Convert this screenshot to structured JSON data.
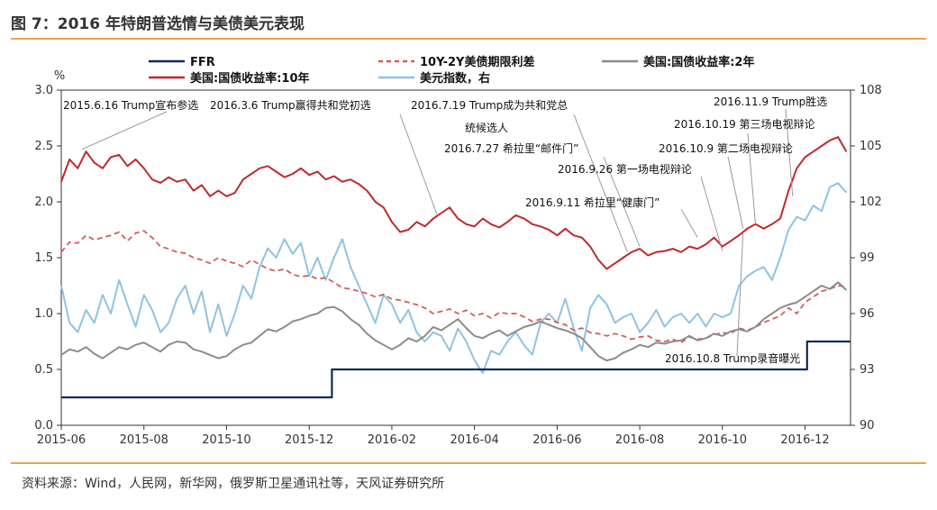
{
  "title": "图 7：2016 年特朗普选情与美债美元表现",
  "source": "资料来源：Wind，人民网，新华网，俄罗斯卫星通讯社等，天风证券研究所",
  "chart_data": {
    "type": "line",
    "title": "图 7：2016 年特朗普选情与美债美元表现",
    "ylabel": "%",
    "ylim": [
      0,
      3.0
    ],
    "y2lim": [
      90,
      108
    ],
    "yticks": [
      "0.0",
      "0.5",
      "1.0",
      "1.5",
      "2.0",
      "2.5",
      "3.0"
    ],
    "y2ticks": [
      "90",
      "93",
      "96",
      "99",
      "102",
      "105",
      "108"
    ],
    "xticks": [
      "2015-06",
      "2015-08",
      "2015-10",
      "2015-12",
      "2016-02",
      "2016-04",
      "2016-06",
      "2016-08",
      "2016-10",
      "2016-12"
    ],
    "x_range_months": [
      0,
      19.1
    ],
    "legend": [
      "FFR",
      "10Y-2Y美债期限利差",
      "美国:国债收益率:2年",
      "美国:国债收益率:10年",
      "美元指数，右"
    ],
    "colors": {
      "ffr": "#0D2B5C",
      "spread": "#D65B5B",
      "y2": "#8C8C8C",
      "y10": "#C0282D",
      "dxy": "#8EC3E3"
    },
    "series": [
      {
        "name": "FFR",
        "axis": "left",
        "x": [
          0,
          6.55,
          6.55,
          18.05,
          18.05,
          19.1
        ],
        "values": [
          0.25,
          0.25,
          0.5,
          0.5,
          0.75,
          0.75
        ]
      },
      {
        "name": "10Y-2Y美债期限利差",
        "axis": "left",
        "x": [
          0,
          0.2,
          0.4,
          0.6,
          0.8,
          1.0,
          1.2,
          1.4,
          1.6,
          1.8,
          2.0,
          2.2,
          2.4,
          2.6,
          2.8,
          3.0,
          3.2,
          3.4,
          3.6,
          3.8,
          4.0,
          4.2,
          4.4,
          4.6,
          4.8,
          5.0,
          5.2,
          5.4,
          5.6,
          5.8,
          6.0,
          6.2,
          6.4,
          6.6,
          6.8,
          7.0,
          7.2,
          7.4,
          7.6,
          7.8,
          8.0,
          8.2,
          8.4,
          8.6,
          8.8,
          9.0,
          9.2,
          9.4,
          9.6,
          9.8,
          10.0,
          10.2,
          10.4,
          10.6,
          10.8,
          11.0,
          11.2,
          11.4,
          11.6,
          11.8,
          12.0,
          12.2,
          12.4,
          12.6,
          12.8,
          13.0,
          13.2,
          13.4,
          13.6,
          13.8,
          14.0,
          14.2,
          14.4,
          14.6,
          14.8,
          15.0,
          15.2,
          15.4,
          15.6,
          15.8,
          16.0,
          16.2,
          16.4,
          16.6,
          16.8,
          17.0,
          17.2,
          17.4,
          17.6,
          17.8,
          18.0,
          18.2,
          18.4,
          18.6,
          18.8,
          19.0
        ],
        "values": [
          1.55,
          1.64,
          1.63,
          1.7,
          1.66,
          1.68,
          1.7,
          1.73,
          1.65,
          1.72,
          1.74,
          1.68,
          1.6,
          1.58,
          1.55,
          1.54,
          1.5,
          1.48,
          1.45,
          1.5,
          1.47,
          1.45,
          1.42,
          1.48,
          1.44,
          1.4,
          1.38,
          1.4,
          1.35,
          1.33,
          1.34,
          1.31,
          1.32,
          1.28,
          1.23,
          1.22,
          1.2,
          1.18,
          1.15,
          1.17,
          1.13,
          1.12,
          1.1,
          1.08,
          1.05,
          1.0,
          1.02,
          1.04,
          1.0,
          1.03,
          0.98,
          1.0,
          0.96,
          1.01,
          1.0,
          1.0,
          0.97,
          0.93,
          0.95,
          0.95,
          0.92,
          0.9,
          0.85,
          0.87,
          0.83,
          0.82,
          0.8,
          0.82,
          0.8,
          0.77,
          0.79,
          0.8,
          0.76,
          0.75,
          0.77,
          0.74,
          0.79,
          0.77,
          0.78,
          0.81,
          0.83,
          0.82,
          0.87,
          0.85,
          0.88,
          0.92,
          0.95,
          0.98,
          1.05,
          1.0,
          1.1,
          1.15,
          1.2,
          1.22,
          1.25,
          1.24
        ]
      },
      {
        "name": "美国:国债收益率:2年",
        "axis": "left",
        "x": [
          0,
          0.2,
          0.4,
          0.6,
          0.8,
          1.0,
          1.2,
          1.4,
          1.6,
          1.8,
          2.0,
          2.2,
          2.4,
          2.6,
          2.8,
          3.0,
          3.2,
          3.4,
          3.6,
          3.8,
          4.0,
          4.2,
          4.4,
          4.6,
          4.8,
          5.0,
          5.2,
          5.4,
          5.6,
          5.8,
          6.0,
          6.2,
          6.4,
          6.6,
          6.8,
          7.0,
          7.2,
          7.4,
          7.6,
          7.8,
          8.0,
          8.2,
          8.4,
          8.6,
          8.8,
          9.0,
          9.2,
          9.4,
          9.6,
          9.8,
          10.0,
          10.2,
          10.4,
          10.6,
          10.8,
          11.0,
          11.2,
          11.4,
          11.6,
          11.8,
          12.0,
          12.2,
          12.4,
          12.6,
          12.8,
          13.0,
          13.2,
          13.4,
          13.6,
          13.8,
          14.0,
          14.2,
          14.4,
          14.6,
          14.8,
          15.0,
          15.2,
          15.4,
          15.6,
          15.8,
          16.0,
          16.2,
          16.4,
          16.6,
          16.8,
          17.0,
          17.2,
          17.4,
          17.6,
          17.8,
          18.0,
          18.2,
          18.4,
          18.6,
          18.8,
          19.0
        ],
        "values": [
          0.63,
          0.68,
          0.66,
          0.7,
          0.64,
          0.6,
          0.65,
          0.7,
          0.68,
          0.72,
          0.74,
          0.7,
          0.66,
          0.72,
          0.75,
          0.74,
          0.68,
          0.66,
          0.63,
          0.6,
          0.62,
          0.68,
          0.72,
          0.74,
          0.8,
          0.86,
          0.84,
          0.88,
          0.93,
          0.95,
          0.98,
          1.0,
          1.05,
          1.06,
          1.02,
          0.95,
          0.9,
          0.82,
          0.76,
          0.72,
          0.68,
          0.72,
          0.78,
          0.75,
          0.8,
          0.88,
          0.85,
          0.9,
          0.95,
          0.87,
          0.8,
          0.78,
          0.82,
          0.85,
          0.8,
          0.84,
          0.88,
          0.9,
          0.93,
          0.9,
          0.87,
          0.85,
          0.82,
          0.78,
          0.7,
          0.62,
          0.58,
          0.6,
          0.65,
          0.68,
          0.72,
          0.7,
          0.74,
          0.73,
          0.75,
          0.76,
          0.8,
          0.76,
          0.78,
          0.82,
          0.8,
          0.84,
          0.86,
          0.84,
          0.88,
          0.95,
          1.0,
          1.05,
          1.08,
          1.1,
          1.15,
          1.2,
          1.25,
          1.22,
          1.28,
          1.21
        ]
      },
      {
        "name": "美国:国债收益率:10年",
        "axis": "left",
        "x": [
          0,
          0.2,
          0.4,
          0.6,
          0.8,
          1.0,
          1.2,
          1.4,
          1.6,
          1.8,
          2.0,
          2.2,
          2.4,
          2.6,
          2.8,
          3.0,
          3.2,
          3.4,
          3.6,
          3.8,
          4.0,
          4.2,
          4.4,
          4.6,
          4.8,
          5.0,
          5.2,
          5.4,
          5.6,
          5.8,
          6.0,
          6.2,
          6.4,
          6.6,
          6.8,
          7.0,
          7.2,
          7.4,
          7.6,
          7.8,
          8.0,
          8.2,
          8.4,
          8.6,
          8.8,
          9.0,
          9.2,
          9.4,
          9.6,
          9.8,
          10.0,
          10.2,
          10.4,
          10.6,
          10.8,
          11.0,
          11.2,
          11.4,
          11.6,
          11.8,
          12.0,
          12.2,
          12.4,
          12.6,
          12.8,
          13.0,
          13.2,
          13.4,
          13.6,
          13.8,
          14.0,
          14.2,
          14.4,
          14.6,
          14.8,
          15.0,
          15.2,
          15.4,
          15.6,
          15.8,
          16.0,
          16.2,
          16.4,
          16.6,
          16.8,
          17.0,
          17.2,
          17.4,
          17.6,
          17.8,
          18.0,
          18.2,
          18.4,
          18.6,
          18.8,
          19.0
        ],
        "values": [
          2.18,
          2.38,
          2.3,
          2.45,
          2.35,
          2.3,
          2.4,
          2.42,
          2.32,
          2.38,
          2.3,
          2.2,
          2.17,
          2.22,
          2.18,
          2.2,
          2.1,
          2.15,
          2.05,
          2.1,
          2.05,
          2.08,
          2.2,
          2.25,
          2.3,
          2.32,
          2.27,
          2.22,
          2.25,
          2.3,
          2.24,
          2.27,
          2.2,
          2.23,
          2.18,
          2.2,
          2.16,
          2.1,
          2.0,
          1.95,
          1.82,
          1.73,
          1.75,
          1.82,
          1.78,
          1.85,
          1.9,
          1.95,
          1.85,
          1.8,
          1.78,
          1.85,
          1.8,
          1.77,
          1.82,
          1.88,
          1.85,
          1.8,
          1.78,
          1.75,
          1.7,
          1.76,
          1.7,
          1.68,
          1.6,
          1.48,
          1.4,
          1.45,
          1.5,
          1.55,
          1.58,
          1.52,
          1.55,
          1.56,
          1.58,
          1.55,
          1.6,
          1.58,
          1.62,
          1.68,
          1.6,
          1.65,
          1.7,
          1.76,
          1.8,
          1.76,
          1.8,
          1.85,
          2.1,
          2.3,
          2.4,
          2.45,
          2.5,
          2.55,
          2.58,
          2.45
        ]
      },
      {
        "name": "美元指数，右",
        "axis": "right",
        "x": [
          0,
          0.2,
          0.4,
          0.6,
          0.8,
          1.0,
          1.2,
          1.4,
          1.6,
          1.8,
          2.0,
          2.2,
          2.4,
          2.6,
          2.8,
          3.0,
          3.2,
          3.4,
          3.6,
          3.8,
          4.0,
          4.2,
          4.4,
          4.6,
          4.8,
          5.0,
          5.2,
          5.4,
          5.6,
          5.8,
          6.0,
          6.2,
          6.4,
          6.6,
          6.8,
          7.0,
          7.2,
          7.4,
          7.6,
          7.8,
          8.0,
          8.2,
          8.4,
          8.6,
          8.8,
          9.0,
          9.2,
          9.4,
          9.6,
          9.8,
          10.0,
          10.2,
          10.4,
          10.6,
          10.8,
          11.0,
          11.2,
          11.4,
          11.6,
          11.8,
          12.0,
          12.2,
          12.4,
          12.6,
          12.8,
          13.0,
          13.2,
          13.4,
          13.6,
          13.8,
          14.0,
          14.2,
          14.4,
          14.6,
          14.8,
          15.0,
          15.2,
          15.4,
          15.6,
          15.8,
          16.0,
          16.2,
          16.4,
          16.6,
          16.8,
          17.0,
          17.2,
          17.4,
          17.6,
          17.8,
          18.0,
          18.2,
          18.4,
          18.6,
          18.8,
          19.0
        ],
        "values": [
          97.5,
          95.5,
          95.0,
          96.2,
          95.5,
          97.0,
          96.0,
          97.8,
          96.5,
          95.3,
          97.0,
          96.2,
          95.0,
          95.5,
          96.8,
          97.5,
          96.0,
          97.2,
          95.0,
          96.5,
          94.8,
          96.0,
          97.5,
          96.8,
          98.5,
          99.5,
          99.0,
          100.0,
          99.2,
          99.8,
          98.0,
          99.0,
          97.8,
          99.0,
          100.0,
          98.5,
          97.5,
          96.5,
          95.5,
          97.0,
          96.5,
          95.5,
          96.2,
          95.0,
          94.5,
          95.0,
          94.8,
          94.0,
          95.2,
          94.5,
          93.5,
          92.8,
          94.0,
          93.8,
          94.5,
          95.0,
          94.3,
          93.8,
          95.5,
          96.0,
          95.5,
          96.8,
          95.2,
          94.0,
          96.3,
          97.0,
          96.5,
          95.5,
          95.8,
          96.0,
          95.0,
          95.5,
          96.2,
          95.3,
          95.8,
          96.0,
          95.5,
          96.0,
          95.3,
          96.0,
          95.8,
          96.0,
          97.5,
          98.0,
          98.3,
          98.5,
          97.8,
          99.0,
          100.5,
          101.2,
          101.0,
          101.8,
          101.5,
          102.8,
          103.0,
          102.5
        ]
      }
    ],
    "annotations": [
      {
        "text": "2015.6.16 Trump宣布参选",
        "x": 0.5,
        "y": 2.47
      },
      {
        "text": "2016.3.6 Trump赢得共和党初选",
        "x": 9.1,
        "y": 1.88
      },
      {
        "text": "2016.7.19 Trump成为共和党总",
        "x": 13.7,
        "y": 1.55
      },
      {
        "text": "统候选人"
      },
      {
        "text": "2016.7.27 希拉里“邮件门”",
        "x": 14.0,
        "y": 1.6
      },
      {
        "text": "2016.9.26 第一场电视辩论",
        "x": 16.0,
        "y": 1.56
      },
      {
        "text": "2016.9.11 希拉里“健康门”",
        "x": 15.4,
        "y": 1.68
      },
      {
        "text": "2016.10.9 第二场电视辩论",
        "x": 16.5,
        "y": 1.76
      },
      {
        "text": "2016.10.19 第三场电视辩论",
        "x": 16.8,
        "y": 1.8
      },
      {
        "text": "2016.11.9 Trump胜选",
        "x": 17.7,
        "y": 2.05
      },
      {
        "text": "2016.10.8 Trump录音曝光",
        "x": 16.5,
        "y": 1.72
      }
    ]
  }
}
